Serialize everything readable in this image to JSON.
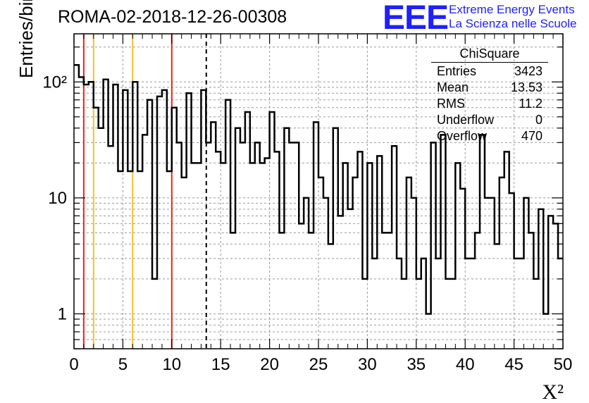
{
  "header": {
    "run_title": "ROMA-02-2018-12-26-00308",
    "logo_text": "EEE",
    "logo_line1": "Extreme Energy Events",
    "logo_line2": "La Scienza nelle Scuole"
  },
  "colors": {
    "histogram": "#000000",
    "red_line": "#e8231d",
    "yellow_line": "#f2c12e",
    "grid": "#999999",
    "logo": "#1f1fff"
  },
  "stats_box": {
    "title": "ChiSquare",
    "rows": [
      {
        "label": "Entries",
        "value": "3423"
      },
      {
        "label": "Mean",
        "value": "13.53"
      },
      {
        "label": "RMS",
        "value": "11.2"
      },
      {
        "label": "Underflow",
        "value": "0"
      },
      {
        "label": "Overflow",
        "value": "470"
      }
    ]
  },
  "chart_data": {
    "type": "bar",
    "histogram": true,
    "xlabel": "X²",
    "ylabel": "Entries/bin",
    "xlim": [
      0,
      50
    ],
    "ylim": [
      0.5,
      260
    ],
    "y_log_scale": true,
    "grid": true,
    "bin_width": 0.5,
    "x_ticks": [
      0,
      5,
      10,
      15,
      20,
      25,
      30,
      35,
      40,
      45,
      50
    ],
    "x_tick_labels": [
      "0",
      "5",
      "10",
      "15",
      "20",
      "25",
      "30",
      "35",
      "40",
      "45",
      "50"
    ],
    "y_ticks": [
      1,
      10,
      100
    ],
    "y_tick_labels": [
      "1",
      "10",
      "10²"
    ],
    "vertical_lines": [
      {
        "x": 1,
        "color": "red",
        "style": "solid"
      },
      {
        "x": 2,
        "color": "yellow",
        "style": "solid"
      },
      {
        "x": 6,
        "color": "yellow",
        "style": "solid"
      },
      {
        "x": 10,
        "color": "red",
        "style": "solid"
      },
      {
        "x": 13.53,
        "color": "black",
        "style": "dashed"
      }
    ],
    "values": [
      140,
      110,
      95,
      100,
      60,
      40,
      105,
      28,
      95,
      17,
      85,
      17,
      100,
      17,
      35,
      70,
      2,
      75,
      85,
      17,
      60,
      30,
      15,
      80,
      20,
      20,
      85,
      30,
      45,
      25,
      20,
      70,
      5,
      40,
      30,
      55,
      20,
      30,
      20,
      22,
      55,
      25,
      5,
      40,
      30,
      30,
      6,
      10,
      5,
      45,
      15,
      10,
      4,
      40,
      7,
      20,
      8,
      15,
      25,
      2,
      20,
      3,
      23,
      5,
      5,
      28,
      3,
      2,
      15,
      10,
      2,
      3,
      1,
      30,
      3,
      35,
      2,
      2,
      20,
      12,
      3,
      3,
      5,
      35,
      10,
      10,
      4,
      15,
      25,
      11,
      3,
      3,
      10,
      5,
      2,
      8,
      1,
      7,
      6,
      3
    ]
  }
}
